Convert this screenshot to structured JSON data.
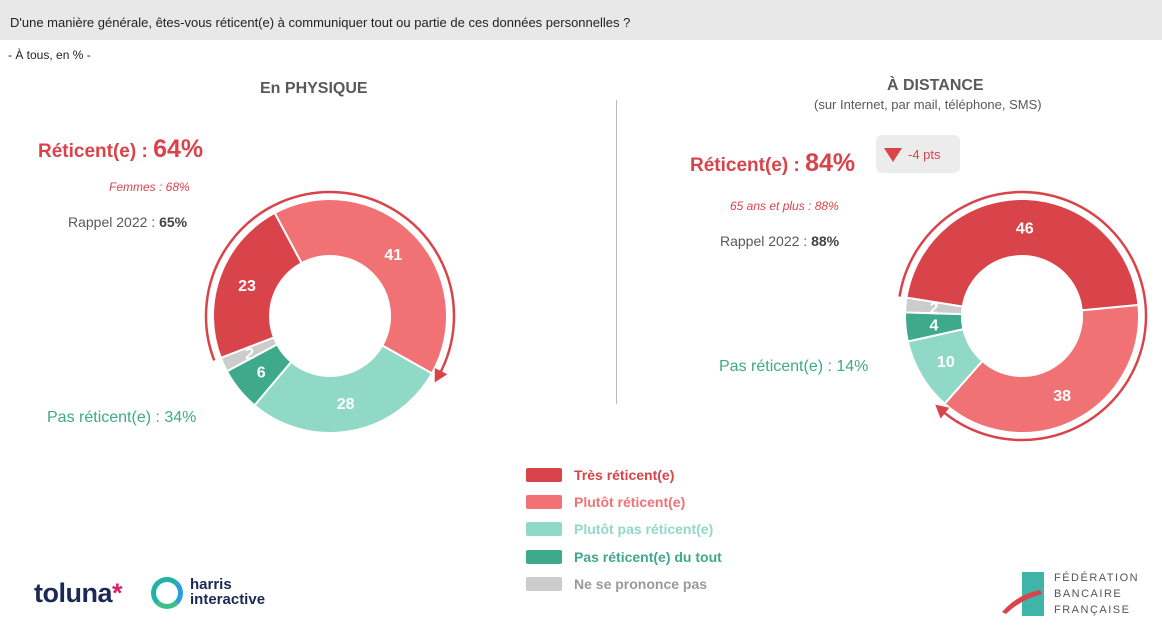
{
  "header": {
    "question": "D'une manière générale, êtes-vous réticent(e) à communiquer tout ou partie de ces données personnelles ?"
  },
  "base": "- À tous, en % -",
  "panels": [
    {
      "title": "En PHYSIQUE",
      "subtitle": "",
      "reticent_label": "Réticent(e) :",
      "reticent_pct": "64%",
      "highlight": "Femmes : 68%",
      "rappel_label": "Rappel 2022 :",
      "rappel_value": "65%",
      "pas_reticent": "Pas réticent(e) : 34%",
      "badge": ""
    },
    {
      "title": "À DISTANCE",
      "subtitle": "(sur Internet, par mail, téléphone, SMS)",
      "reticent_label": "Réticent(e) :",
      "reticent_pct": "84%",
      "highlight": "65 ans et plus : 88%",
      "rappel_label": "Rappel 2022 :",
      "rappel_value": "88%",
      "pas_reticent": "Pas réticent(e) : 14%",
      "badge": "-4 pts"
    }
  ],
  "chart_data": [
    {
      "type": "pie",
      "title": "En PHYSIQUE",
      "categories": [
        "Très réticent(e)",
        "Plutôt réticent(e)",
        "Plutôt pas réticent(e)",
        "Pas réticent(e) du tout",
        "Ne se prononce pas"
      ],
      "values": [
        23,
        41,
        28,
        6,
        2
      ]
    },
    {
      "type": "pie",
      "title": "À DISTANCE",
      "categories": [
        "Très réticent(e)",
        "Plutôt réticent(e)",
        "Plutôt pas réticent(e)",
        "Pas réticent(e) du tout",
        "Ne se prononce pas"
      ],
      "values": [
        46,
        38,
        10,
        4,
        2
      ]
    }
  ],
  "legend": [
    {
      "label": "Très réticent(e)",
      "color": "#d9434a"
    },
    {
      "label": "Plutôt réticent(e)",
      "color": "#f07275"
    },
    {
      "label": "Plutôt pas réticent(e)",
      "color": "#8fd9c6"
    },
    {
      "label": "Pas réticent(e) du tout",
      "color": "#3ea98b"
    },
    {
      "label": "Ne se prononce pas",
      "color": "#cccccc"
    }
  ],
  "logos": {
    "toluna": "toluna",
    "harris_line1": "harris",
    "harris_line2": "interactive",
    "fbf_line1": "FÉDÉRATION",
    "fbf_line2": "BANCAIRE",
    "fbf_line3": "FRANÇAISE"
  }
}
